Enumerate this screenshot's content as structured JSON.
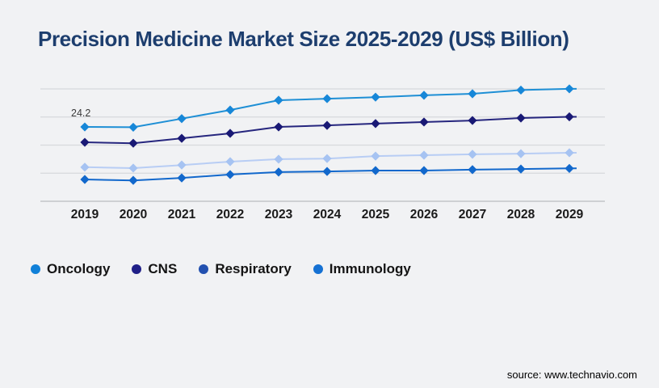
{
  "title": "Precision Medicine Market Size 2025-2029 (US$ Billion)",
  "source_text": "source: www.technavio.com",
  "colors": {
    "background": "#f1f2f4",
    "title": "#1d3e6e",
    "gridline": "#d7d9dc",
    "axis_line": "#c3c5c8",
    "x_label": "#1a1a1a",
    "annotation": "#3a3a3a"
  },
  "chart_data": {
    "type": "line",
    "title": "Precision Medicine Market Size 2025-2029 (US$ Billion)",
    "unit": "US$ Billion",
    "x": [
      "2019",
      "2020",
      "2021",
      "2022",
      "2023",
      "2024",
      "2025",
      "2026",
      "2027",
      "2028",
      "2029"
    ],
    "xlabel": "",
    "ylabel": "",
    "ylim": [
      0,
      40
    ],
    "grid": "horizontal",
    "legend_position": "bottom-left",
    "marker_shape": "diamond",
    "series": [
      {
        "name": "Oncology",
        "line_color": "#1e8fd5",
        "marker_color": "#1787d8",
        "legend_color": "#1080d8",
        "values": [
          24.2,
          24.1,
          26.9,
          29.7,
          32.9,
          33.4,
          33.9,
          34.5,
          35.0,
          36.2,
          36.6
        ]
      },
      {
        "name": "CNS",
        "line_color": "#26267e",
        "marker_color": "#191975",
        "legend_color": "#202088",
        "values": [
          19.2,
          18.9,
          20.5,
          22.1,
          24.2,
          24.7,
          25.3,
          25.8,
          26.3,
          27.1,
          27.5
        ]
      },
      {
        "name": "Respiratory",
        "line_color": "#b8cdf4",
        "marker_color": "#a6c3f2",
        "legend_color": "#2351b0",
        "values": [
          11.1,
          10.8,
          11.8,
          12.9,
          13.7,
          13.9,
          14.7,
          15.0,
          15.3,
          15.5,
          15.8
        ]
      },
      {
        "name": "Immunology",
        "line_color": "#1268cc",
        "marker_color": "#1268cc",
        "legend_color": "#1571d3",
        "values": [
          7.1,
          6.8,
          7.6,
          8.7,
          9.5,
          9.7,
          10.0,
          10.0,
          10.3,
          10.5,
          10.7
        ]
      }
    ],
    "annotations": [
      {
        "text": "24.2",
        "series": "Oncology",
        "x": "2019"
      }
    ]
  }
}
